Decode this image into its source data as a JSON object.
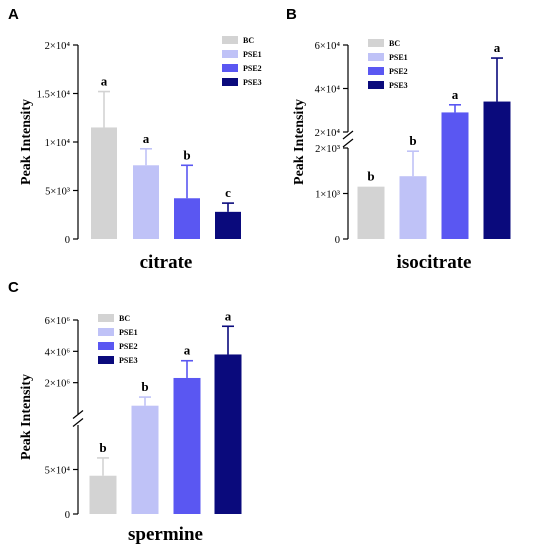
{
  "legend": {
    "colors": {
      "BC": "#d3d3d3",
      "PSE1": "#bfc2f7",
      "PSE2": "#5a57f2",
      "PSE3": "#0a0a7c"
    }
  },
  "chart_data": [
    {
      "panel": "A",
      "type": "bar",
      "xlabel": "citrate",
      "ylabel": "Peak Intensity",
      "categories": [
        "BC",
        "PSE1",
        "PSE2",
        "PSE3"
      ],
      "values": [
        11500,
        7600,
        4200,
        2800
      ],
      "errors": [
        3700,
        1700,
        3400,
        900
      ],
      "significance": [
        "a",
        "a",
        "b",
        "c"
      ],
      "ylim": [
        0,
        20000
      ],
      "ticks": [
        {
          "value": 0,
          "label": "0"
        },
        {
          "value": 5000,
          "label": "5×10³"
        },
        {
          "value": 10000,
          "label": "1×10⁴"
        },
        {
          "value": 15000,
          "label": "1.5×10⁴"
        },
        {
          "value": 20000,
          "label": "2×10⁴"
        }
      ],
      "legend_position": "top-right"
    },
    {
      "panel": "B",
      "type": "bar",
      "xlabel": "isocitrate",
      "ylabel": "Peak Intensity",
      "categories": [
        "BC",
        "PSE1",
        "PSE2",
        "PSE3"
      ],
      "values": [
        1150,
        1380,
        29000,
        34000
      ],
      "errors": [
        0,
        550,
        3500,
        20000
      ],
      "significance": [
        "b",
        "b",
        "a",
        "a"
      ],
      "broken_axis": {
        "lower": [
          0,
          2000
        ],
        "upper": [
          20000,
          60000
        ]
      },
      "ticks": [
        {
          "value": 0,
          "label": "0"
        },
        {
          "value": 1000,
          "label": "1×10³"
        },
        {
          "value": 2000,
          "label": "2×10³"
        },
        {
          "value": 20000,
          "label": "2×10⁴"
        },
        {
          "value": 40000,
          "label": "4×10⁴"
        },
        {
          "value": 60000,
          "label": "6×10⁴"
        }
      ],
      "legend_position": "top-left"
    },
    {
      "panel": "C",
      "type": "bar",
      "xlabel": "spermine",
      "ylabel": "Peak Intensity",
      "categories": [
        "BC",
        "PSE1",
        "PSE2",
        "PSE3"
      ],
      "values": [
        43000,
        530000,
        2300000,
        3800000
      ],
      "errors": [
        20000,
        550000,
        1100000,
        1800000
      ],
      "significance": [
        "b",
        "b",
        "a",
        "a"
      ],
      "broken_axis": {
        "lower": [
          0,
          100000
        ],
        "upper": [
          0,
          6000000
        ]
      },
      "ticks": [
        {
          "value": 0,
          "label": "0"
        },
        {
          "value": 50000,
          "label": "5×10⁴"
        },
        {
          "value": 2000000,
          "label": "2×10⁶"
        },
        {
          "value": 4000000,
          "label": "4×10⁶"
        },
        {
          "value": 6000000,
          "label": "6×10⁶"
        }
      ],
      "legend_position": "top-left"
    }
  ]
}
